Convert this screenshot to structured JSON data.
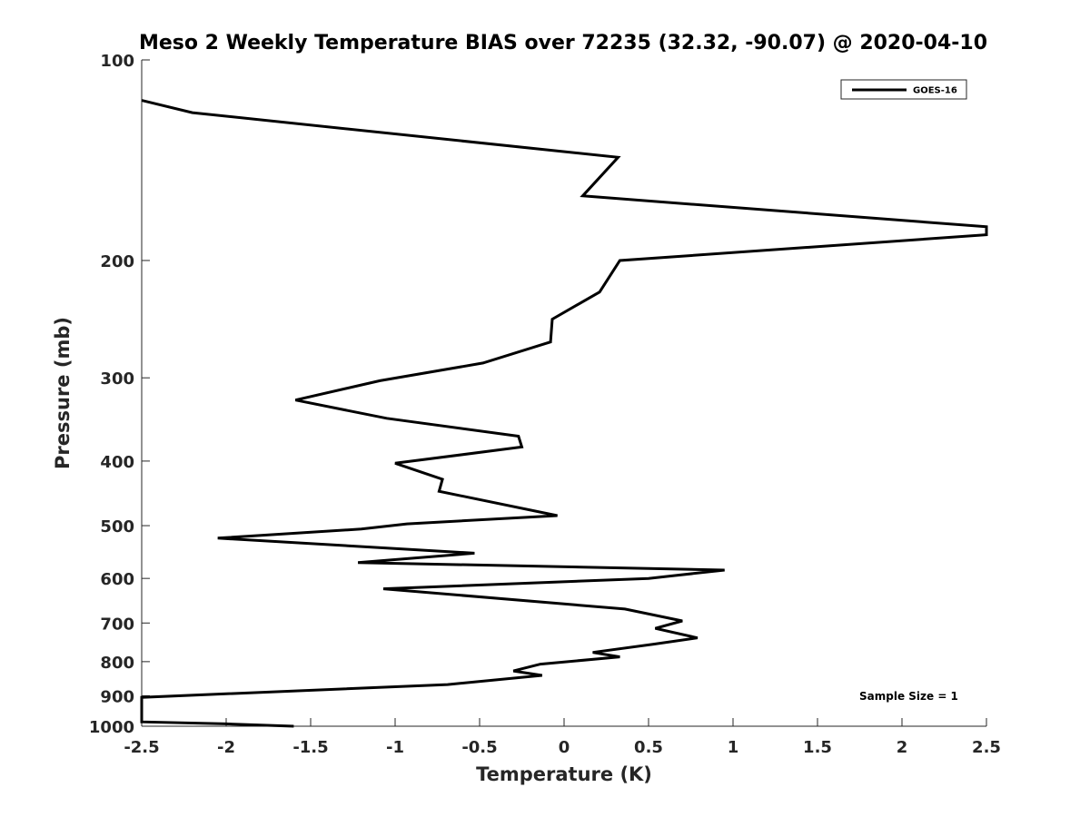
{
  "chart_data": {
    "type": "line",
    "title": "Meso 2 Weekly Temperature BIAS over 72235 (32.32, -90.07) @ 2020-04-10",
    "xlabel": "Temperature (K)",
    "ylabel": "Pressure (mb)",
    "xlim": [
      -2.5,
      2.5
    ],
    "ylim": [
      100,
      1000
    ],
    "yscale": "log",
    "y_reversed": true,
    "grid": false,
    "x_ticks": [
      -2.5,
      -2,
      -1.5,
      -1,
      -0.5,
      0,
      0.5,
      1,
      1.5,
      2,
      2.5
    ],
    "x_tick_labels": [
      "-2.5",
      "-2",
      "-1.5",
      "-1",
      "-0.5",
      "0",
      "0.5",
      "1",
      "1.5",
      "2",
      "2.5"
    ],
    "y_ticks": [
      100,
      200,
      300,
      400,
      500,
      600,
      700,
      800,
      900,
      1000
    ],
    "y_tick_labels": [
      "100",
      "200",
      "300",
      "400",
      "500",
      "600",
      "700",
      "800",
      "900",
      "1000"
    ],
    "legend_position": "top-right",
    "annotation": "Sample Size = 1",
    "series": [
      {
        "name": "GOES-16",
        "color": "#000000",
        "points": [
          {
            "x": -2.5,
            "y": 115
          },
          {
            "x": -2.2,
            "y": 120
          },
          {
            "x": 0.32,
            "y": 140
          },
          {
            "x": 0.11,
            "y": 160
          },
          {
            "x": 2.5,
            "y": 178
          },
          {
            "x": 2.5,
            "y": 183
          },
          {
            "x": 0.33,
            "y": 200
          },
          {
            "x": 0.21,
            "y": 223
          },
          {
            "x": -0.07,
            "y": 245
          },
          {
            "x": -0.08,
            "y": 265
          },
          {
            "x": -0.48,
            "y": 285
          },
          {
            "x": -1.09,
            "y": 303
          },
          {
            "x": -1.59,
            "y": 324
          },
          {
            "x": -1.05,
            "y": 345
          },
          {
            "x": -0.27,
            "y": 367
          },
          {
            "x": -0.25,
            "y": 381
          },
          {
            "x": -1.0,
            "y": 403
          },
          {
            "x": -0.72,
            "y": 426
          },
          {
            "x": -0.74,
            "y": 444
          },
          {
            "x": -0.04,
            "y": 483
          },
          {
            "x": -0.93,
            "y": 497
          },
          {
            "x": -1.2,
            "y": 506
          },
          {
            "x": -2.05,
            "y": 522
          },
          {
            "x": -0.53,
            "y": 550
          },
          {
            "x": -1.22,
            "y": 568
          },
          {
            "x": 0.95,
            "y": 583
          },
          {
            "x": 0.5,
            "y": 600
          },
          {
            "x": -1.07,
            "y": 622
          },
          {
            "x": 0.36,
            "y": 667
          },
          {
            "x": 0.7,
            "y": 695
          },
          {
            "x": 0.54,
            "y": 713
          },
          {
            "x": 0.79,
            "y": 737
          },
          {
            "x": 0.53,
            "y": 753
          },
          {
            "x": 0.17,
            "y": 775
          },
          {
            "x": 0.33,
            "y": 787
          },
          {
            "x": -0.14,
            "y": 807
          },
          {
            "x": -0.3,
            "y": 826
          },
          {
            "x": -0.13,
            "y": 839
          },
          {
            "x": -0.69,
            "y": 866
          },
          {
            "x": -2.5,
            "y": 905
          },
          {
            "x": -2.5,
            "y": 985
          },
          {
            "x": -2.0,
            "y": 992
          },
          {
            "x": -1.6,
            "y": 1000
          }
        ]
      }
    ]
  }
}
